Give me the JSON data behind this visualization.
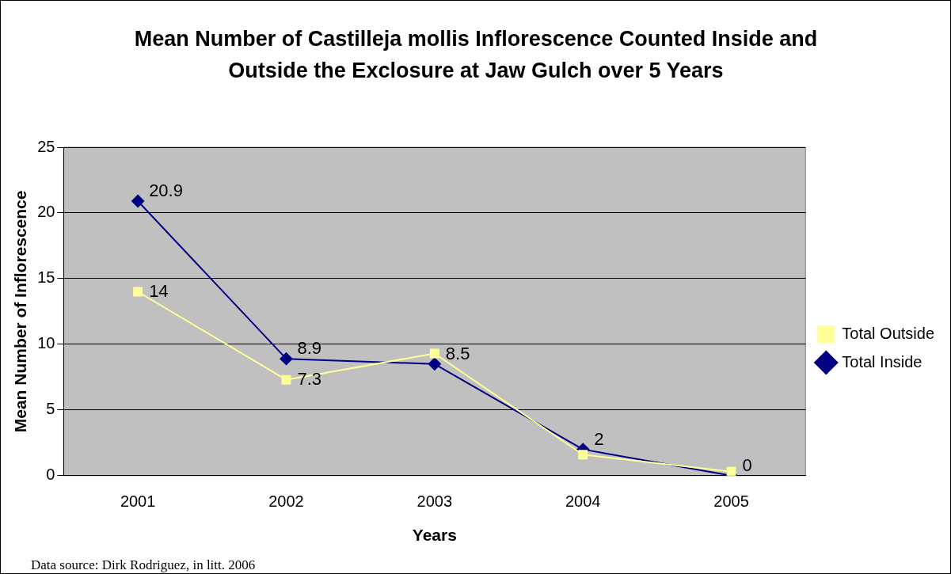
{
  "chart_data": {
    "type": "line",
    "title": "Mean Number of Castilleja mollis Inflorescence Counted Inside and Outside the Exclosure at Jaw Gulch over 5 Years",
    "xlabel": "Years",
    "ylabel": "Mean Number of Inflorescence",
    "categories": [
      "2001",
      "2002",
      "2003",
      "2004",
      "2005"
    ],
    "series": [
      {
        "name": "Total Inside",
        "color": "#000080",
        "marker": "diamond",
        "values": [
          20.9,
          8.9,
          8.5,
          2,
          0
        ],
        "value_labels": [
          "20.9",
          "8.9",
          "8.5",
          "2",
          "0"
        ]
      },
      {
        "name": "Total Outside",
        "color": "#ffff99",
        "marker": "square",
        "values": [
          14,
          7.3,
          9.3,
          1.6,
          0.3
        ],
        "value_labels": [
          "14",
          "7.3",
          null,
          null,
          null
        ]
      }
    ],
    "ylim": [
      0,
      25
    ],
    "yticks": [
      0,
      5,
      10,
      15,
      20,
      25
    ],
    "grid": "y",
    "legend": "right",
    "annotations": [
      "Data source: Dirk Rodriguez, in litt. 2006"
    ]
  }
}
